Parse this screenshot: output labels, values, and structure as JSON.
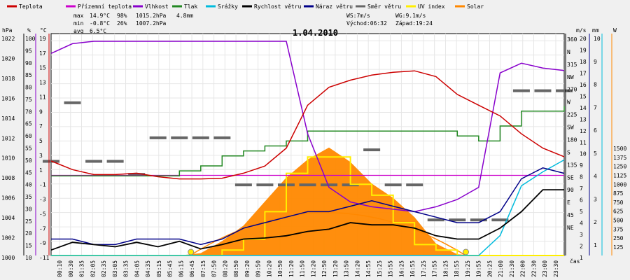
{
  "chart_data": {
    "type": "line",
    "title": "1.04.2010",
    "xlabel": "čas",
    "legend_position": "top",
    "legend": [
      {
        "key": "teplota",
        "label": "Teplota",
        "color": "#cc0000"
      },
      {
        "key": "prizemni",
        "label": "Přízemní teplota",
        "color": "#cc00cc"
      },
      {
        "key": "vlhkost",
        "label": "Vlhkost",
        "color": "#8800cc"
      },
      {
        "key": "tlak",
        "label": "Tlak",
        "color": "#228822"
      },
      {
        "key": "srazky",
        "label": "Srážky",
        "color": "#00bbdd"
      },
      {
        "key": "rychlost",
        "label": "Rychlost větru",
        "color": "#000000"
      },
      {
        "key": "naraz",
        "label": "Náraz větru",
        "color": "#000088"
      },
      {
        "key": "smer",
        "label": "Směr větru",
        "color": "#666666"
      },
      {
        "key": "uv",
        "label": "UV index",
        "color": "#ffee00"
      },
      {
        "key": "solar",
        "label": "Solar",
        "color": "#ff8800"
      }
    ],
    "stats": {
      "max_label": "max",
      "max_temp": "14.9°C",
      "max_hum": "98%",
      "max_press": "1015.2hPa",
      "rain": "4.8mm",
      "min_label": "min",
      "min_temp": "-0.8°C",
      "min_hum": "26%",
      "min_press": "1007.2hPa",
      "avg_label": "avg",
      "avg_temp": "6.5°C",
      "ws": "WS:7m/s",
      "wg": "WG:9.1m/s",
      "sunrise": "Východ:06:32",
      "sunset": "Západ:19:24"
    },
    "axes": {
      "hpa": {
        "title": "hPa",
        "ticks": [
          "1022",
          "1020",
          "1018",
          "1016",
          "1014",
          "1012",
          "1010",
          "1008",
          "1006",
          "1004",
          "1002",
          "1000"
        ],
        "range": [
          1000,
          1022
        ]
      },
      "pct": {
        "title": "%",
        "ticks": [
          "100",
          "95",
          "90",
          "85",
          "80",
          "75",
          "70",
          "65",
          "60",
          "55",
          "50",
          "45",
          "40",
          "35",
          "30",
          "25",
          "20",
          "15",
          "10"
        ]
      },
      "temp": {
        "title": "°C",
        "ticks": [
          "19",
          "17",
          "15",
          "13",
          "11",
          "9",
          "7",
          "5",
          "3",
          "1",
          "-1",
          "-3",
          "-5",
          "-7",
          "-9",
          "-11"
        ],
        "range": [
          -11,
          20
        ]
      },
      "dir": {
        "ticks": [
          "360",
          "N",
          "315",
          "NW",
          "270",
          "W",
          "225",
          "SW",
          "180",
          "S",
          "135",
          "SE",
          "90",
          "E",
          "45",
          "NE"
        ]
      },
      "ms": {
        "title": "m/s",
        "ticks": [
          "20",
          "19",
          "18",
          "17",
          "16",
          "15",
          "14",
          "13",
          "12",
          "11",
          "10",
          "9",
          "8",
          "7",
          "6",
          "5",
          "4",
          "3",
          "2",
          "1"
        ],
        "range": [
          0,
          20
        ]
      },
      "mm": {
        "title": "mm",
        "ticks": [
          "10",
          "9",
          "8",
          "7",
          "6",
          "5",
          "4",
          "3",
          "2",
          "1"
        ],
        "range": [
          0,
          11
        ]
      },
      "w": {
        "title": "W",
        "ticks": [
          "1500",
          "1375",
          "1250",
          "1125",
          "1000",
          "875",
          "750",
          "625",
          "500",
          "375",
          "250",
          "125"
        ],
        "range": [
          0,
          1500
        ]
      }
    },
    "x_ticks": [
      "00:10",
      "00:30",
      "01:35",
      "02:05",
      "02:35",
      "03:05",
      "03:35",
      "04:05",
      "04:35",
      "05:15",
      "05:45",
      "06:15",
      "06:45",
      "07:15",
      "07:50",
      "08:20",
      "08:50",
      "09:20",
      "09:50",
      "10:20",
      "10:50",
      "11:20",
      "11:50",
      "12:20",
      "12:50",
      "13:20",
      "13:50",
      "14:20",
      "14:55",
      "15:25",
      "15:55",
      "16:25",
      "16:55",
      "17:25",
      "17:55",
      "18:25",
      "18:55",
      "19:25",
      "19:55",
      "20:25",
      "21:00",
      "21:30",
      "22:00",
      "22:30",
      "23:00",
      "23:30"
    ],
    "hours": [
      0,
      1,
      2,
      3,
      4,
      5,
      6,
      7,
      8,
      9,
      10,
      11,
      12,
      13,
      14,
      15,
      16,
      17,
      18,
      19,
      20,
      21,
      22,
      23,
      24
    ],
    "series": [
      {
        "name": "Teplota",
        "axis": "temp",
        "color": "#cc0000",
        "values": [
          2.2,
          1.0,
          0.3,
          0.3,
          0.5,
          0.0,
          -0.3,
          -0.3,
          -0.2,
          0.5,
          1.5,
          4.0,
          10.0,
          12.5,
          13.5,
          14.2,
          14.6,
          14.8,
          14.0,
          11.5,
          10.0,
          8.5,
          6.0,
          4.0,
          2.8
        ]
      },
      {
        "name": "Přízemní teplota",
        "axis": "temp",
        "color": "#cc00cc",
        "values": [
          0.2,
          0.2,
          0.2,
          0.2,
          0.2,
          0.2,
          0.2,
          0.2,
          0.2,
          0.2,
          0.2,
          0.2,
          0.2,
          0.2,
          0.2,
          0.2,
          0.2,
          0.2,
          0.2,
          0.2,
          0.2,
          0.2,
          0.2,
          0.2,
          0.2
        ]
      },
      {
        "name": "Vlhkost",
        "axis": "pct",
        "color": "#8800cc",
        "values": [
          93,
          97,
          98,
          98,
          98,
          98,
          98,
          98,
          98,
          98,
          98,
          98,
          60,
          38,
          32,
          30,
          29,
          28,
          30,
          33,
          38,
          85,
          89,
          87,
          86
        ]
      },
      {
        "name": "Tlak",
        "axis": "hpa",
        "color": "#228822",
        "values": [
          1008.0,
          1008.0,
          1008.0,
          1008.0,
          1008.0,
          1008.0,
          1008.5,
          1009.0,
          1010.0,
          1010.5,
          1011.0,
          1011.5,
          1012.5,
          1012.5,
          1012.5,
          1012.5,
          1012.5,
          1012.5,
          1012.5,
          1012.0,
          1011.5,
          1013.0,
          1014.5,
          1014.5,
          1015.0
        ]
      },
      {
        "name": "Rychlost větru",
        "axis": "ms",
        "color": "#000000",
        "values": [
          0.5,
          1.2,
          1.0,
          0.8,
          1.2,
          0.8,
          1.3,
          0.6,
          1.0,
          1.5,
          1.6,
          1.8,
          2.2,
          2.4,
          3.0,
          2.8,
          2.8,
          2.5,
          1.8,
          1.5,
          1.5,
          2.5,
          4.0,
          6.0,
          6.0
        ]
      },
      {
        "name": "Náraz větru",
        "axis": "ms",
        "color": "#000088",
        "values": [
          1.5,
          1.5,
          1.0,
          1.0,
          1.5,
          1.5,
          1.5,
          1.0,
          1.5,
          2.5,
          3.0,
          3.5,
          4.0,
          4.0,
          4.5,
          5.0,
          4.5,
          4.0,
          3.5,
          3.0,
          3.0,
          4.0,
          7.0,
          8.0,
          7.5
        ]
      },
      {
        "name": "Srážky",
        "axis": "mm",
        "color": "#00bbdd",
        "values": [
          0,
          0,
          0,
          0,
          0,
          0,
          0,
          0,
          0,
          0,
          0,
          0,
          0,
          0,
          0,
          0,
          0,
          0,
          0,
          0,
          0,
          1.0,
          3.5,
          4.2,
          4.8
        ]
      },
      {
        "name": "Solar",
        "axis": "w",
        "color": "#ff8800",
        "values": [
          0,
          0,
          0,
          0,
          0,
          0,
          0,
          20,
          120,
          250,
          450,
          650,
          800,
          900,
          780,
          600,
          480,
          320,
          100,
          10,
          0,
          0,
          0,
          0,
          0
        ]
      },
      {
        "name": "UV index",
        "axis": "ms",
        "color": "#ffee00",
        "values": [
          0,
          0,
          0,
          0,
          0,
          0,
          0,
          0,
          0.5,
          1.5,
          4.0,
          7.5,
          9.0,
          9.0,
          6.5,
          5.5,
          3.0,
          1.0,
          0.5,
          0,
          0,
          0,
          0,
          0,
          0
        ]
      }
    ],
    "wind_direction": {
      "axis": "dir",
      "points": [
        [
          0,
          180
        ],
        [
          1,
          292
        ],
        [
          2,
          180
        ],
        [
          3,
          180
        ],
        [
          4,
          155
        ],
        [
          5,
          225
        ],
        [
          6,
          225
        ],
        [
          7,
          225
        ],
        [
          8,
          225
        ],
        [
          9,
          135
        ],
        [
          10,
          135
        ],
        [
          11,
          135
        ],
        [
          12,
          135
        ],
        [
          13,
          135
        ],
        [
          14,
          135
        ],
        [
          15,
          202
        ],
        [
          16,
          135
        ],
        [
          17,
          135
        ],
        [
          18,
          68
        ],
        [
          19,
          68
        ],
        [
          20,
          68
        ],
        [
          21,
          68
        ],
        [
          22,
          315
        ],
        [
          23,
          315
        ],
        [
          24,
          315
        ]
      ]
    }
  }
}
